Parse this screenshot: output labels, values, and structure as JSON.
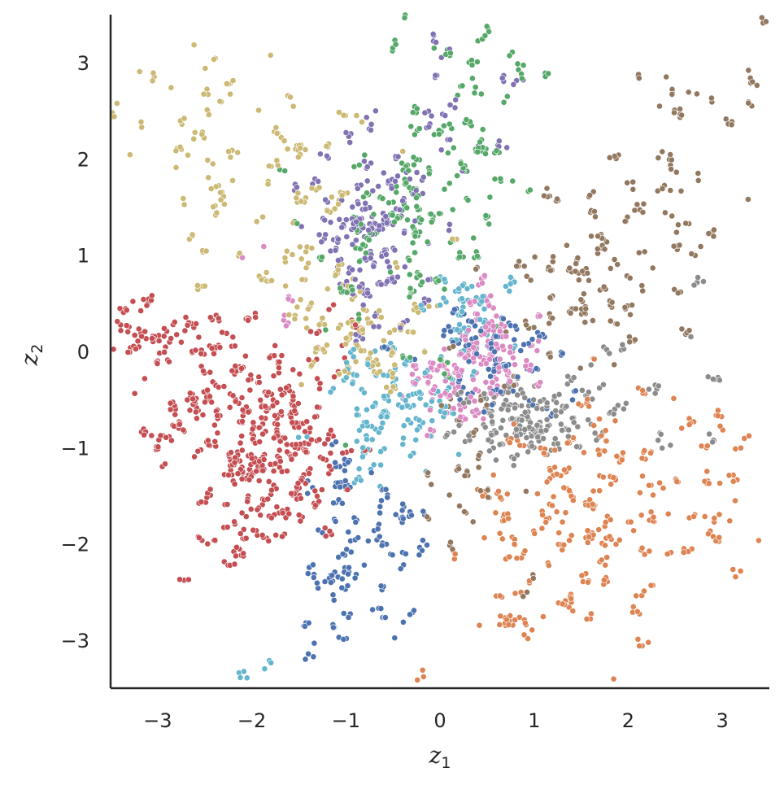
{
  "chart_data": {
    "type": "scatter",
    "title": "",
    "xlabel": {
      "base": "z",
      "sub": "1"
    },
    "ylabel": {
      "base": "z",
      "sub": "2"
    },
    "xlim": [
      -3.5,
      3.5
    ],
    "ylim": [
      -3.5,
      3.5
    ],
    "xticks": [
      -3,
      -2,
      -1,
      0,
      1,
      2,
      3
    ],
    "yticks": [
      -3,
      -2,
      -1,
      0,
      1,
      2,
      3
    ],
    "xtick_labels": [
      "−3",
      "−2",
      "−1",
      "0",
      "1",
      "2",
      "3"
    ],
    "ytick_labels": [
      "−3",
      "−2",
      "−1",
      "0",
      "1",
      "2",
      "3"
    ],
    "grid": false,
    "legend": "none",
    "series": [
      {
        "color": "#c44e52",
        "clusters": [
          {
            "x": -2.05,
            "y": -0.55,
            "sx": 0.55,
            "sy": 0.5,
            "n": 360
          },
          {
            "x": -1.7,
            "y": -1.35,
            "sx": 0.35,
            "sy": 0.35,
            "n": 130
          },
          {
            "x": -3.1,
            "y": 0.15,
            "sx": 0.25,
            "sy": 0.18,
            "n": 70
          },
          {
            "x": -2.2,
            "y": -2.1,
            "sx": 0.2,
            "sy": 0.3,
            "n": 30
          }
        ]
      },
      {
        "color": "#dd8452",
        "clusters": [
          {
            "x": 1.1,
            "y": -1.8,
            "sx": 0.55,
            "sy": 0.5,
            "n": 150
          },
          {
            "x": 2.2,
            "y": -1.5,
            "sx": 0.6,
            "sy": 0.55,
            "n": 110
          },
          {
            "x": 1.3,
            "y": -2.9,
            "sx": 0.5,
            "sy": 0.3,
            "n": 40
          },
          {
            "x": 3.0,
            "y": -1.3,
            "sx": 0.3,
            "sy": 0.6,
            "n": 30
          }
        ]
      },
      {
        "color": "#55a868",
        "clusters": [
          {
            "x": -0.4,
            "y": 1.2,
            "sx": 0.45,
            "sy": 0.55,
            "n": 150
          },
          {
            "x": 0.2,
            "y": 2.0,
            "sx": 0.4,
            "sy": 0.45,
            "n": 90
          },
          {
            "x": 0.6,
            "y": 3.0,
            "sx": 0.55,
            "sy": 0.35,
            "n": 35
          }
        ]
      },
      {
        "color": "#8172b3",
        "clusters": [
          {
            "x": -0.8,
            "y": 1.0,
            "sx": 0.3,
            "sy": 0.35,
            "n": 140
          },
          {
            "x": -0.55,
            "y": 1.7,
            "sx": 0.3,
            "sy": 0.4,
            "n": 80
          },
          {
            "x": 0.3,
            "y": 2.8,
            "sx": 0.55,
            "sy": 0.45,
            "n": 30
          }
        ]
      },
      {
        "color": "#937860",
        "clusters": [
          {
            "x": 1.5,
            "y": 0.8,
            "sx": 0.45,
            "sy": 0.45,
            "n": 120
          },
          {
            "x": 2.4,
            "y": 1.5,
            "sx": 0.55,
            "sy": 0.7,
            "n": 70
          },
          {
            "x": 0.3,
            "y": -1.2,
            "sx": 0.3,
            "sy": 0.5,
            "n": 60
          },
          {
            "x": 2.8,
            "y": 2.5,
            "sx": 0.4,
            "sy": 0.4,
            "n": 25
          }
        ]
      },
      {
        "color": "#ccb974",
        "clusters": [
          {
            "x": -0.75,
            "y": 0.15,
            "sx": 0.35,
            "sy": 0.3,
            "n": 110
          },
          {
            "x": -1.9,
            "y": 1.9,
            "sx": 0.55,
            "sy": 0.55,
            "n": 100
          },
          {
            "x": -2.8,
            "y": 2.6,
            "sx": 0.4,
            "sy": 0.5,
            "n": 35
          },
          {
            "x": -1.4,
            "y": 0.9,
            "sx": 0.35,
            "sy": 0.35,
            "n": 50
          }
        ]
      },
      {
        "color": "#8c8c8c",
        "clusters": [
          {
            "x": 0.85,
            "y": -0.7,
            "sx": 0.3,
            "sy": 0.2,
            "n": 180
          },
          {
            "x": 1.6,
            "y": -0.45,
            "sx": 0.35,
            "sy": 0.2,
            "n": 40
          },
          {
            "x": 2.6,
            "y": 0.0,
            "sx": 0.4,
            "sy": 0.6,
            "n": 25
          }
        ]
      },
      {
        "color": "#da8bc3",
        "clusters": [
          {
            "x": 0.55,
            "y": 0.0,
            "sx": 0.22,
            "sy": 0.3,
            "n": 140
          },
          {
            "x": 0.05,
            "y": -0.4,
            "sx": 0.18,
            "sy": 0.18,
            "n": 70
          },
          {
            "x": -1.7,
            "y": 0.6,
            "sx": 0.3,
            "sy": 0.3,
            "n": 10
          }
        ]
      },
      {
        "color": "#4c72b0",
        "clusters": [
          {
            "x": -0.8,
            "y": -1.9,
            "sx": 0.35,
            "sy": 0.5,
            "n": 120
          },
          {
            "x": 0.55,
            "y": -0.1,
            "sx": 0.35,
            "sy": 0.3,
            "n": 110
          },
          {
            "x": -1.0,
            "y": -2.8,
            "sx": 0.3,
            "sy": 0.3,
            "n": 25
          }
        ]
      },
      {
        "color": "#64b5cd",
        "clusters": [
          {
            "x": -0.45,
            "y": -0.65,
            "sx": 0.35,
            "sy": 0.3,
            "n": 150
          },
          {
            "x": 0.3,
            "y": 0.4,
            "sx": 0.25,
            "sy": 0.25,
            "n": 70
          },
          {
            "x": -1.5,
            "y": -3.0,
            "sx": 0.4,
            "sy": 0.3,
            "n": 8
          }
        ]
      }
    ]
  }
}
